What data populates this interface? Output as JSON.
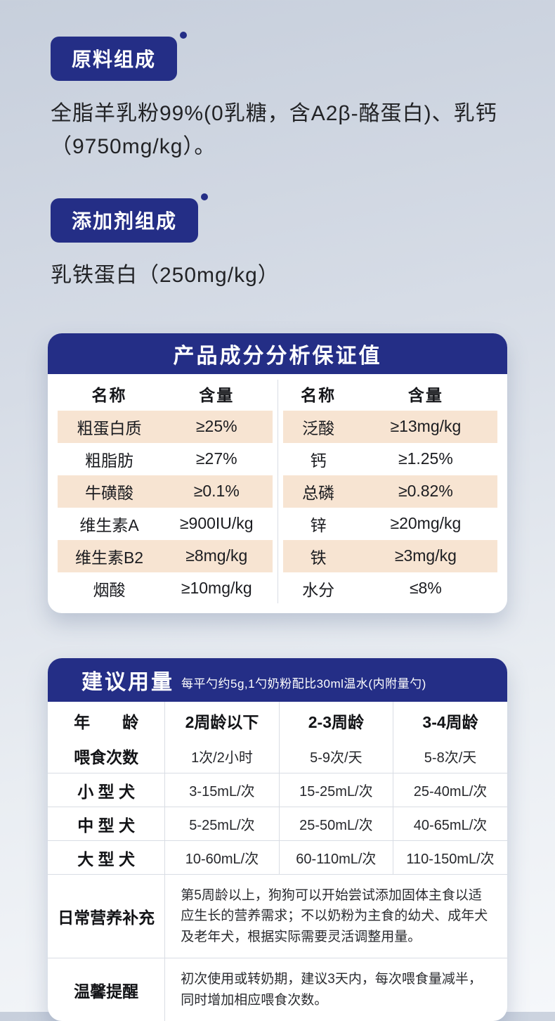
{
  "colors": {
    "navy": "#242e86",
    "peach": "#f7e4d2",
    "line": "#d9dde4",
    "text": "#1f1f22"
  },
  "sections": {
    "raw_material": {
      "badge": "原料组成",
      "text": "全脂羊乳粉99%(0乳糖，含A2β-酪蛋白)、乳钙（9750mg/kg）。"
    },
    "additive": {
      "badge": "添加剂组成",
      "text": "乳铁蛋白（250mg/kg）"
    }
  },
  "analysis_card": {
    "title": "产品成分分析保证值",
    "col_headers": [
      "名称",
      "含量",
      "名称",
      "含量"
    ],
    "rows": [
      [
        "粗蛋白质",
        "≥25%",
        "泛酸",
        "≥13mg/kg"
      ],
      [
        "粗脂肪",
        "≥27%",
        "钙",
        "≥1.25%"
      ],
      [
        "牛磺酸",
        "≥0.1%",
        "总磷",
        "≥0.82%"
      ],
      [
        "维生素A",
        "≥900IU/kg",
        "锌",
        "≥20mg/kg"
      ],
      [
        "维生素B2",
        "≥8mg/kg",
        "铁",
        "≥3mg/kg"
      ],
      [
        "烟酸",
        "≥10mg/kg",
        "水分",
        "≤8%"
      ]
    ]
  },
  "dosage_card": {
    "title": "建议用量",
    "subtitle": "每平勺约5g,1勺奶粉配比30ml温水(内附量勺)",
    "header_row": [
      "年　　龄",
      "2周龄以下",
      "2-3周龄",
      "3-4周龄"
    ],
    "rows": [
      [
        "喂食次数",
        "1次/2小时",
        "5-9次/天",
        "5-8次/天"
      ],
      [
        "小 型 犬",
        "3-15mL/次",
        "15-25mL/次",
        "25-40mL/次"
      ],
      [
        "中 型 犬",
        "5-25mL/次",
        "25-50mL/次",
        "40-65mL/次"
      ],
      [
        "大 型 犬",
        "10-60mL/次",
        "60-110mL/次",
        "110-150mL/次"
      ]
    ],
    "span_rows": [
      {
        "label": "日常营养补充",
        "text": "第5周龄以上，狗狗可以开始尝试添加固体主食以适应生长的营养需求；不以奶粉为主食的幼犬、成年犬及老年犬，根据实际需要灵活调整用量。"
      },
      {
        "label": "温馨提醒",
        "text": "初次使用或转奶期，建议3天内，每次喂食量减半，同时增加相应喂食次数。"
      }
    ]
  }
}
